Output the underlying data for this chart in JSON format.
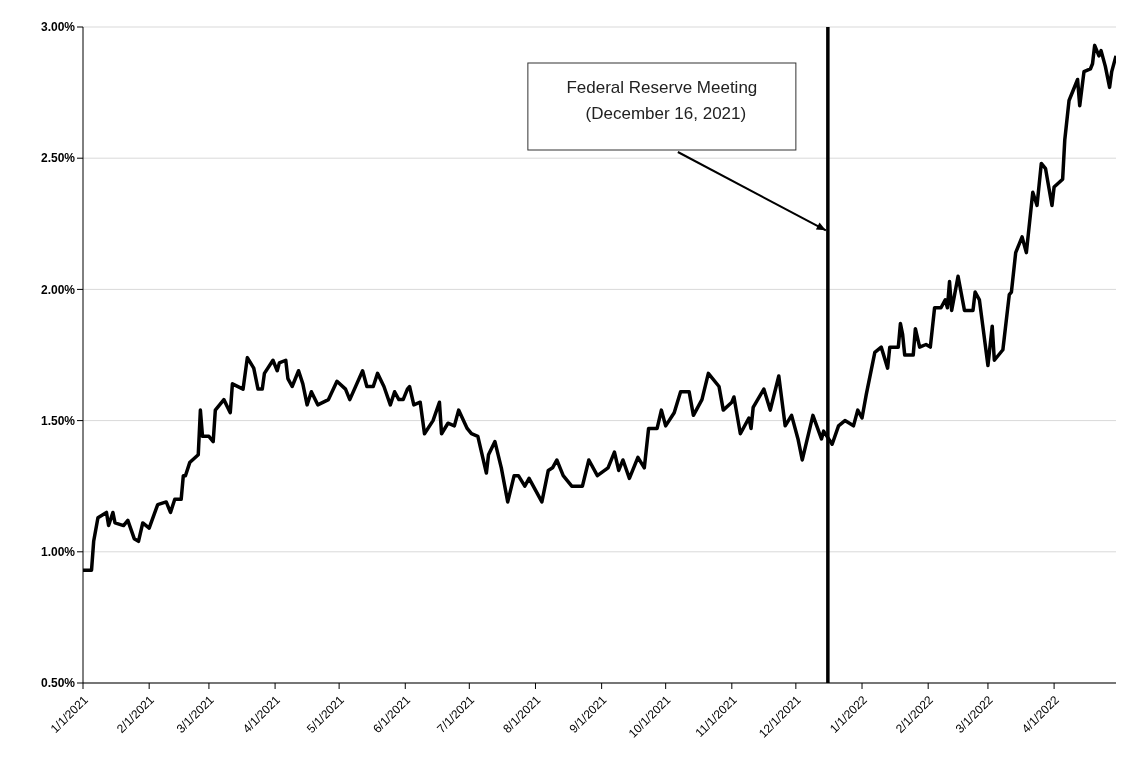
{
  "chart_data": {
    "type": "line",
    "x": [
      "2021-01-01",
      "2021-01-05",
      "2021-01-06",
      "2021-01-08",
      "2021-01-12",
      "2021-01-13",
      "2021-01-15",
      "2021-01-16",
      "2021-01-20",
      "2021-01-22",
      "2021-01-25",
      "2021-01-27",
      "2021-01-29",
      "2021-02-01",
      "2021-02-05",
      "2021-02-09",
      "2021-02-11",
      "2021-02-13",
      "2021-02-16",
      "2021-02-17",
      "2021-02-18",
      "2021-02-20",
      "2021-02-24",
      "2021-02-25",
      "2021-02-26",
      "2021-03-01",
      "2021-03-03",
      "2021-03-04",
      "2021-03-08",
      "2021-03-11",
      "2021-03-12",
      "2021-03-17",
      "2021-03-19",
      "2021-03-22",
      "2021-03-24",
      "2021-03-26",
      "2021-03-27",
      "2021-03-31",
      "2021-04-02",
      "2021-04-03",
      "2021-04-06",
      "2021-04-07",
      "2021-04-09",
      "2021-04-12",
      "2021-04-14",
      "2021-04-16",
      "2021-04-18",
      "2021-04-21",
      "2021-04-26",
      "2021-04-30",
      "2021-05-04",
      "2021-05-06",
      "2021-05-12",
      "2021-05-14",
      "2021-05-17",
      "2021-05-19",
      "2021-05-22",
      "2021-05-25",
      "2021-05-27",
      "2021-05-29",
      "2021-05-31",
      "2021-06-02",
      "2021-06-03",
      "2021-06-05",
      "2021-06-08",
      "2021-06-10",
      "2021-06-14",
      "2021-06-17",
      "2021-06-18",
      "2021-06-21",
      "2021-06-24",
      "2021-06-26",
      "2021-06-30",
      "2021-07-02",
      "2021-07-05",
      "2021-07-09",
      "2021-07-10",
      "2021-07-13",
      "2021-07-16",
      "2021-07-19",
      "2021-07-22",
      "2021-07-24",
      "2021-07-27",
      "2021-07-29",
      "2021-08-04",
      "2021-08-07",
      "2021-08-09",
      "2021-08-11",
      "2021-08-14",
      "2021-08-18",
      "2021-08-23",
      "2021-08-26",
      "2021-08-30",
      "2021-09-04",
      "2021-09-07",
      "2021-09-09",
      "2021-09-11",
      "2021-09-14",
      "2021-09-18",
      "2021-09-21",
      "2021-09-23",
      "2021-09-27",
      "2021-09-29",
      "2021-10-01",
      "2021-10-05",
      "2021-10-08",
      "2021-10-12",
      "2021-10-14",
      "2021-10-18",
      "2021-10-21",
      "2021-10-26",
      "2021-10-28",
      "2021-11-01",
      "2021-11-02",
      "2021-11-05",
      "2021-11-09",
      "2021-11-10",
      "2021-11-11",
      "2021-11-16",
      "2021-11-19",
      "2021-11-23",
      "2021-11-26",
      "2021-11-29",
      "2021-12-02",
      "2021-12-04",
      "2021-12-09",
      "2021-12-13",
      "2021-12-14",
      "2021-12-18",
      "2021-12-21",
      "2021-12-24",
      "2021-12-28",
      "2021-12-30",
      "2022-01-01",
      "2022-01-03",
      "2022-01-07",
      "2022-01-10",
      "2022-01-13",
      "2022-01-14",
      "2022-01-18",
      "2022-01-19",
      "2022-01-20",
      "2022-01-21",
      "2022-01-25",
      "2022-01-26",
      "2022-01-28",
      "2022-01-31",
      "2022-02-02",
      "2022-02-04",
      "2022-02-07",
      "2022-02-09",
      "2022-02-10",
      "2022-02-11",
      "2022-02-12",
      "2022-02-15",
      "2022-02-18",
      "2022-02-22",
      "2022-02-23",
      "2022-02-25",
      "2022-03-01",
      "2022-03-03",
      "2022-03-04",
      "2022-03-08",
      "2022-03-11",
      "2022-03-12",
      "2022-03-14",
      "2022-03-17",
      "2022-03-19",
      "2022-03-22",
      "2022-03-24",
      "2022-03-26",
      "2022-03-28",
      "2022-03-31",
      "2022-04-01",
      "2022-04-05",
      "2022-04-06",
      "2022-04-08",
      "2022-04-11",
      "2022-04-12",
      "2022-04-13",
      "2022-04-15",
      "2022-04-18",
      "2022-04-19",
      "2022-04-20",
      "2022-04-22",
      "2022-04-23",
      "2022-04-25",
      "2022-04-27",
      "2022-04-28",
      "2022-04-30"
    ],
    "series": [
      {
        "color": "#000000",
        "values": [
          0.93,
          0.93,
          1.04,
          1.13,
          1.15,
          1.1,
          1.15,
          1.11,
          1.1,
          1.12,
          1.05,
          1.04,
          1.11,
          1.09,
          1.18,
          1.19,
          1.15,
          1.2,
          1.2,
          1.29,
          1.29,
          1.34,
          1.37,
          1.54,
          1.44,
          1.44,
          1.42,
          1.54,
          1.58,
          1.53,
          1.64,
          1.62,
          1.74,
          1.7,
          1.62,
          1.62,
          1.68,
          1.73,
          1.69,
          1.72,
          1.73,
          1.66,
          1.63,
          1.69,
          1.64,
          1.56,
          1.61,
          1.56,
          1.58,
          1.65,
          1.62,
          1.58,
          1.69,
          1.63,
          1.63,
          1.68,
          1.63,
          1.56,
          1.61,
          1.58,
          1.58,
          1.62,
          1.63,
          1.56,
          1.57,
          1.45,
          1.5,
          1.57,
          1.45,
          1.49,
          1.48,
          1.54,
          1.47,
          1.45,
          1.44,
          1.3,
          1.37,
          1.42,
          1.32,
          1.19,
          1.29,
          1.29,
          1.25,
          1.28,
          1.19,
          1.31,
          1.32,
          1.35,
          1.29,
          1.25,
          1.25,
          1.35,
          1.29,
          1.32,
          1.38,
          1.31,
          1.35,
          1.28,
          1.36,
          1.32,
          1.47,
          1.47,
          1.54,
          1.48,
          1.53,
          1.61,
          1.61,
          1.52,
          1.58,
          1.68,
          1.63,
          1.54,
          1.57,
          1.59,
          1.45,
          1.51,
          1.47,
          1.55,
          1.62,
          1.54,
          1.67,
          1.48,
          1.52,
          1.43,
          1.35,
          1.52,
          1.43,
          1.46,
          1.41,
          1.48,
          1.5,
          1.48,
          1.54,
          1.51,
          1.6,
          1.76,
          1.78,
          1.7,
          1.78,
          1.78,
          1.87,
          1.83,
          1.75,
          1.75,
          1.85,
          1.78,
          1.79,
          1.78,
          1.93,
          1.93,
          1.96,
          1.93,
          2.03,
          1.92,
          2.05,
          1.92,
          1.92,
          1.99,
          1.96,
          1.71,
          1.86,
          1.73,
          1.77,
          1.98,
          1.99,
          2.14,
          2.2,
          2.14,
          2.37,
          2.32,
          2.48,
          2.46,
          2.32,
          2.39,
          2.42,
          2.57,
          2.72,
          2.78,
          2.8,
          2.7,
          2.83,
          2.84,
          2.86,
          2.93,
          2.89,
          2.91,
          2.85,
          2.77,
          2.83,
          2.89
        ]
      }
    ],
    "xlim": [
      "2021-01-01",
      "2022-04-30"
    ],
    "xticks": [
      {
        "value": "2021-01-01",
        "label": "1/1/2021"
      },
      {
        "value": "2021-02-01",
        "label": "2/1/2021"
      },
      {
        "value": "2021-03-01",
        "label": "3/1/2021"
      },
      {
        "value": "2021-04-01",
        "label": "4/1/2021"
      },
      {
        "value": "2021-05-01",
        "label": "5/1/2021"
      },
      {
        "value": "2021-06-01",
        "label": "6/1/2021"
      },
      {
        "value": "2021-07-01",
        "label": "7/1/2021"
      },
      {
        "value": "2021-08-01",
        "label": "8/1/2021"
      },
      {
        "value": "2021-09-01",
        "label": "9/1/2021"
      },
      {
        "value": "2021-10-01",
        "label": "10/1/2021"
      },
      {
        "value": "2021-11-01",
        "label": "11/1/2021"
      },
      {
        "value": "2021-12-01",
        "label": "12/1/2021"
      },
      {
        "value": "2022-01-01",
        "label": "1/1/2022"
      },
      {
        "value": "2022-02-01",
        "label": "2/1/2022"
      },
      {
        "value": "2022-03-01",
        "label": "3/1/2022"
      },
      {
        "value": "2022-04-01",
        "label": "4/1/2022"
      }
    ],
    "ylim": [
      0.5,
      3.0
    ],
    "yticks": [
      {
        "value": 0.5,
        "label": "0.50%"
      },
      {
        "value": 1.0,
        "label": "1.00%"
      },
      {
        "value": 1.5,
        "label": "1.50%"
      },
      {
        "value": 2.0,
        "label": "2.00%"
      },
      {
        "value": 2.5,
        "label": "2.50%"
      },
      {
        "value": 3.0,
        "label": "3.00%"
      }
    ],
    "grid": "y",
    "ref_lines": [
      {
        "axis": "x",
        "value": "2021-12-16",
        "label": "Federal Reserve Meeting\n(December 16, 2021)",
        "color": "#000000"
      }
    ]
  }
}
